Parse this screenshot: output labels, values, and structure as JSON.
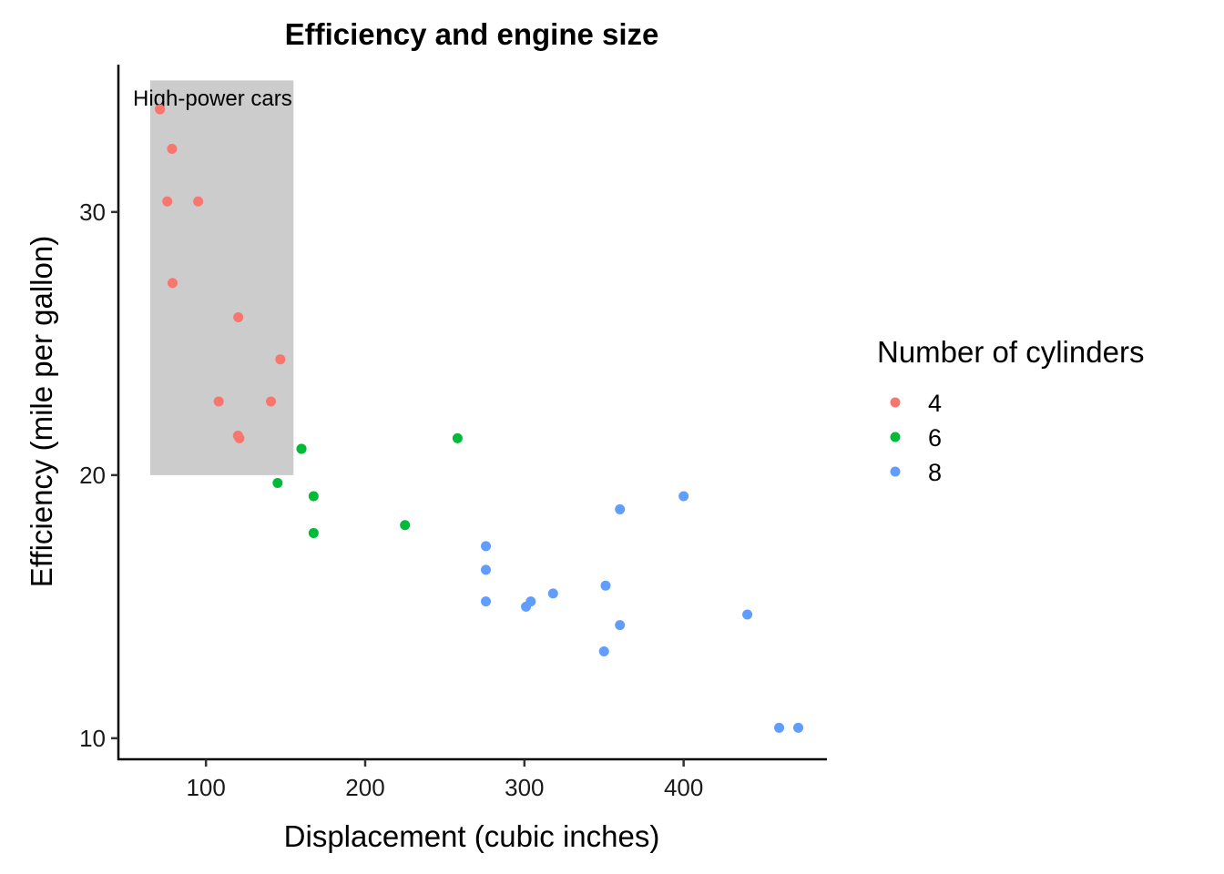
{
  "chart_data": {
    "type": "scatter",
    "title": "Efficiency and engine size",
    "xlabel": "Displacement (cubic inches)",
    "ylabel": "Efficiency (mile per gallon)",
    "xlim": [
      45,
      490
    ],
    "ylim": [
      9.2,
      35.6
    ],
    "x_ticks": [
      100,
      200,
      300,
      400
    ],
    "y_ticks": [
      10,
      20,
      30
    ],
    "grid": false,
    "legend": {
      "title": "Number of cylinders",
      "position": "right"
    },
    "annotation": {
      "label": "High-power cars",
      "xmin": 65,
      "xmax": 155,
      "ymin": 20,
      "ymax": 35,
      "fill": "#cccccc"
    },
    "series": [
      {
        "name": "4",
        "color": "#F8766D",
        "points": [
          [
            71.1,
            33.9
          ],
          [
            78.7,
            32.4
          ],
          [
            75.7,
            30.4
          ],
          [
            95.1,
            30.4
          ],
          [
            79.0,
            27.3
          ],
          [
            120.3,
            26.0
          ],
          [
            146.7,
            24.4
          ],
          [
            108.0,
            22.8
          ],
          [
            140.8,
            22.8
          ],
          [
            120.1,
            21.5
          ],
          [
            121.0,
            21.4
          ]
        ]
      },
      {
        "name": "6",
        "color": "#00BA38",
        "points": [
          [
            160.0,
            21.0
          ],
          [
            160.0,
            21.0
          ],
          [
            258.0,
            21.4
          ],
          [
            145.0,
            19.7
          ],
          [
            167.6,
            19.2
          ],
          [
            167.6,
            17.8
          ],
          [
            225.0,
            18.1
          ]
        ]
      },
      {
        "name": "8",
        "color": "#619CFF",
        "points": [
          [
            360.0,
            18.7
          ],
          [
            400.0,
            19.2
          ],
          [
            275.8,
            17.3
          ],
          [
            275.8,
            16.4
          ],
          [
            275.8,
            15.2
          ],
          [
            304.0,
            15.2
          ],
          [
            301.0,
            15.0
          ],
          [
            318.0,
            15.5
          ],
          [
            351.0,
            15.8
          ],
          [
            360.0,
            14.3
          ],
          [
            350.0,
            13.3
          ],
          [
            440.0,
            14.7
          ],
          [
            460.0,
            10.4
          ],
          [
            472.0,
            10.4
          ]
        ]
      }
    ]
  }
}
